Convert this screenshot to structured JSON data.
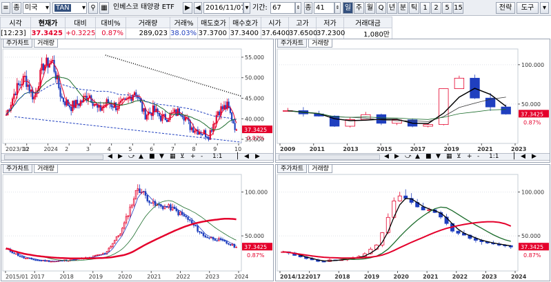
{
  "toolbar": {
    "menu_button": "≡",
    "seq_button": "종",
    "market": "미국",
    "symbol": "TAN",
    "name": "인베스코 태양광 ETF",
    "date": "2016/11/07",
    "period_label": "기간:",
    "period_value": "67",
    "unit_label": "종",
    "unit_value": "41",
    "intervals": [
      "일",
      "주",
      "월",
      "Q",
      "년",
      "분",
      "틱",
      "1",
      "2",
      "5",
      "15"
    ],
    "active_interval": "일",
    "strategy_button": "전략",
    "tools_button": "도구",
    "colors": {
      "bg": "#ebeef3",
      "active": "#33507e"
    }
  },
  "quote": {
    "headers": [
      "시각",
      "현재가",
      "대비",
      "대비%",
      "거래량",
      "거래%",
      "매도호가",
      "매수호가",
      "시가",
      "고가",
      "저가",
      "거래대금"
    ],
    "values": [
      "[12:23]",
      "37.3425",
      "+0.3225",
      "0.87%",
      "289,023",
      "38.03%",
      "37.3700",
      "37.3400",
      "37.6400",
      "37.6500",
      "37.2300",
      "1,080만"
    ]
  },
  "panels": [
    {
      "tabs": [
        "주가차트",
        "거래량"
      ],
      "price_label": "37.3425",
      "pct_label": "0.87%",
      "y_ticks": [
        "55.000",
        "50.000",
        "45.000",
        "40.000",
        "35.000"
      ],
      "x_ticks": [
        "2023/10",
        "12",
        "2024",
        "2",
        "3",
        "4",
        "5",
        "6",
        "7",
        "8",
        "9",
        "10"
      ],
      "control_glyphs": "◀ ▶ ▲ ■ ▼ ■ ▲ ▼ + - 1:1",
      "scale_label": "1:1"
    },
    {
      "tabs": [
        "주가차트",
        "거래량"
      ],
      "price_label": "37.3425",
      "pct_label": "0.87%",
      "y_ticks": [
        "100.000",
        "50.000"
      ],
      "x_ticks": [
        "2009",
        "2011",
        "2013",
        "2015",
        "2017",
        "2019",
        "2021",
        "2023"
      ],
      "scale_label": "1:1"
    },
    {
      "tabs": [
        "주가차트",
        "거래량"
      ],
      "price_label": "37.3425",
      "pct_label": "0.87%",
      "y_ticks": [
        "100.000",
        "50.000"
      ],
      "x_ticks": [
        "2015/01",
        "2017",
        "2018",
        "2019",
        "2020",
        "2021",
        "2022",
        "2023",
        "2024"
      ]
    },
    {
      "tabs": [
        "주가차트",
        "거래량"
      ],
      "price_label": "37.3425",
      "pct_label": "0.87%",
      "y_ticks": [
        "100.000",
        "50.000"
      ],
      "x_ticks": [
        "2014/12",
        "2017",
        "2018",
        "2019",
        "2020",
        "2021",
        "2022",
        "2023",
        "2024"
      ]
    }
  ],
  "chart_data": [
    {
      "type": "candlestick",
      "interval": "daily",
      "ylim": [
        34,
        57
      ],
      "approx_closes": [
        41,
        47,
        50,
        45,
        53,
        54,
        45,
        43,
        44,
        46,
        42,
        44,
        43,
        44,
        47,
        41,
        42,
        40,
        41,
        42,
        38,
        37,
        36,
        42,
        43,
        37.3425
      ]
    },
    {
      "type": "candlestick",
      "interval": "yearly",
      "ylim": [
        0,
        120
      ],
      "approx_closes": [
        42,
        38,
        34,
        22,
        30,
        37,
        25,
        30,
        22,
        24,
        68,
        82,
        58,
        46,
        37.3425
      ]
    },
    {
      "type": "candlestick",
      "interval": "monthly",
      "ylim": [
        10,
        120
      ],
      "approx_closes": [
        35,
        25,
        22,
        21,
        23,
        25,
        30,
        55,
        105,
        85,
        82,
        70,
        50,
        45,
        37.3425
      ]
    },
    {
      "type": "candlestick",
      "interval": "quarterly",
      "ylim": [
        10,
        120
      ],
      "approx_closes": [
        32,
        25,
        21,
        23,
        26,
        40,
        100,
        82,
        76,
        55,
        45,
        40,
        37.3425
      ]
    }
  ]
}
